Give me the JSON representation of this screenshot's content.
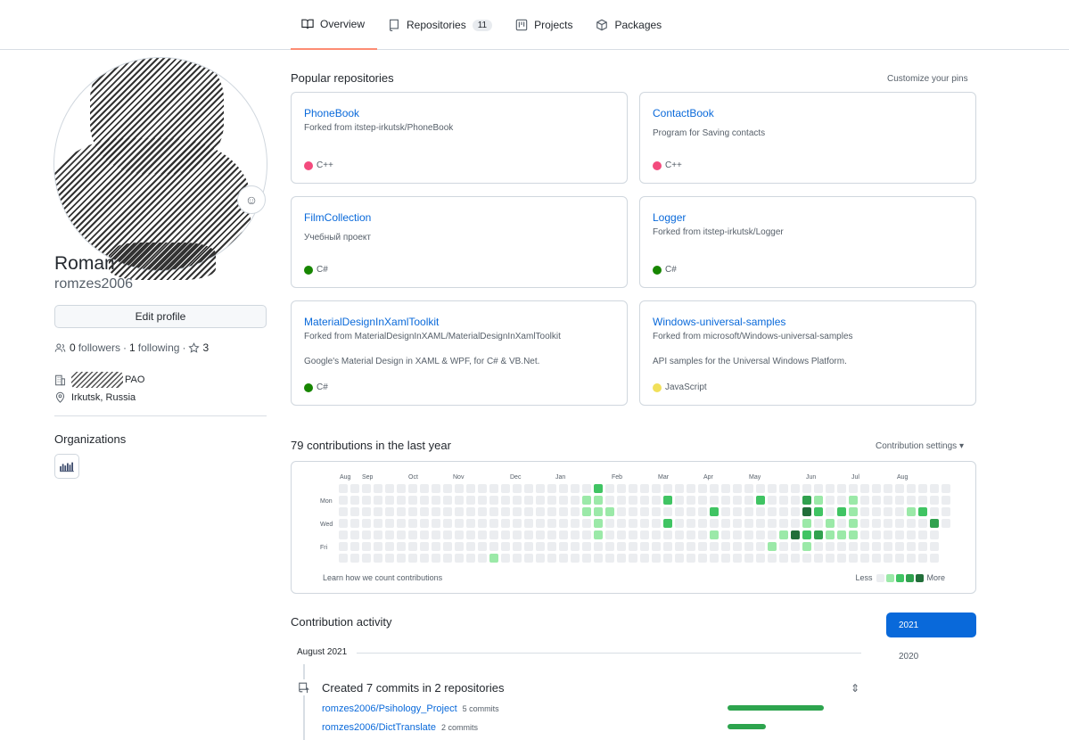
{
  "nav": {
    "tabs": [
      {
        "label": "Overview",
        "icon": "book-icon",
        "active": true
      },
      {
        "label": "Repositories",
        "icon": "repo-icon",
        "count": "11"
      },
      {
        "label": "Projects",
        "icon": "project-icon"
      },
      {
        "label": "Packages",
        "icon": "package-icon"
      }
    ]
  },
  "profile": {
    "name_visible": "Roman",
    "username": "romzes2006",
    "edit_label": "Edit profile",
    "followers_count": "0",
    "followers_label": "followers",
    "following_count": "1",
    "following_label": "following",
    "stars_count": "3",
    "company_suffix": "PAO",
    "location": "Irkutsk, Russia",
    "organizations_title": "Organizations"
  },
  "popular": {
    "title": "Popular repositories",
    "customize_label": "Customize your pins",
    "repos": [
      {
        "name": "PhoneBook",
        "desc1": "Forked from itstep-irkutsk/PhoneBook",
        "desc2": "",
        "lang": "C++",
        "color": "#f34b7d"
      },
      {
        "name": "ContactBook",
        "desc1": "",
        "desc2": "Program for Saving contacts",
        "lang": "C++",
        "color": "#f34b7d"
      },
      {
        "name": "FilmCollection",
        "desc1": "",
        "desc2": "Учебный проект",
        "lang": "C#",
        "color": "#178600"
      },
      {
        "name": "Logger",
        "desc1": "Forked from itstep-irkutsk/Logger",
        "desc2": "",
        "lang": "C#",
        "color": "#178600"
      },
      {
        "name": "MaterialDesignInXamlToolkit",
        "desc1": "Forked from MaterialDesignInXAML/MaterialDesignInXamlToolkit",
        "desc2": "Google's Material Design in XAML & WPF, for C# & VB.Net.",
        "lang": "C#",
        "color": "#178600"
      },
      {
        "name": "Windows-universal-samples",
        "desc1": "Forked from microsoft/Windows-universal-samples",
        "desc2": "API samples for the Universal Windows Platform.",
        "lang": "JavaScript",
        "color": "#f1e05a"
      }
    ]
  },
  "contributions": {
    "title": "79 contributions in the last year",
    "settings_label": "Contribution settings ▾",
    "months": [
      "Aug",
      "Sep",
      "Oct",
      "Nov",
      "Dec",
      "Jan",
      "Feb",
      "Mar",
      "Apr",
      "May",
      "Jun",
      "Jul",
      "Aug"
    ],
    "days": [
      "Mon",
      "Wed",
      "Fri"
    ],
    "learn_label": "Learn how we count contributions",
    "less_label": "Less",
    "more_label": "More",
    "level_colors": [
      "#ebedf0",
      "#9be9a8",
      "#40c463",
      "#30a14e",
      "#216e39"
    ],
    "weeks": 53,
    "active_cells": [
      [
        21,
        1,
        1
      ],
      [
        21,
        2,
        1
      ],
      [
        22,
        0,
        2
      ],
      [
        22,
        1,
        1
      ],
      [
        22,
        2,
        1
      ],
      [
        22,
        3,
        1
      ],
      [
        22,
        4,
        1
      ],
      [
        23,
        2,
        1
      ],
      [
        28,
        1,
        2
      ],
      [
        28,
        3,
        2
      ],
      [
        32,
        2,
        2
      ],
      [
        32,
        4,
        1
      ],
      [
        36,
        1,
        2
      ],
      [
        37,
        5,
        1
      ],
      [
        38,
        4,
        1
      ],
      [
        39,
        4,
        4
      ],
      [
        40,
        1,
        3
      ],
      [
        40,
        2,
        4
      ],
      [
        40,
        3,
        1
      ],
      [
        40,
        4,
        2
      ],
      [
        40,
        5,
        1
      ],
      [
        41,
        1,
        1
      ],
      [
        41,
        2,
        2
      ],
      [
        41,
        4,
        3
      ],
      [
        42,
        3,
        1
      ],
      [
        42,
        4,
        1
      ],
      [
        43,
        2,
        2
      ],
      [
        43,
        4,
        1
      ],
      [
        44,
        1,
        1
      ],
      [
        44,
        2,
        1
      ],
      [
        44,
        3,
        1
      ],
      [
        44,
        4,
        1
      ],
      [
        49,
        2,
        1
      ],
      [
        50,
        2,
        2
      ],
      [
        51,
        3,
        3
      ],
      [
        13,
        6,
        1
      ]
    ]
  },
  "activity": {
    "title": "Contribution activity",
    "years": [
      "2021",
      "2020"
    ],
    "month_label": "August 2021",
    "summary": "Created 7 commits in 2 repositories",
    "commits": [
      {
        "repo": "romzes2006/Psihology_Project",
        "count": "5 commits",
        "fraction": 1.0
      },
      {
        "repo": "romzes2006/DictTranslate",
        "count": "2 commits",
        "fraction": 0.4
      }
    ]
  }
}
